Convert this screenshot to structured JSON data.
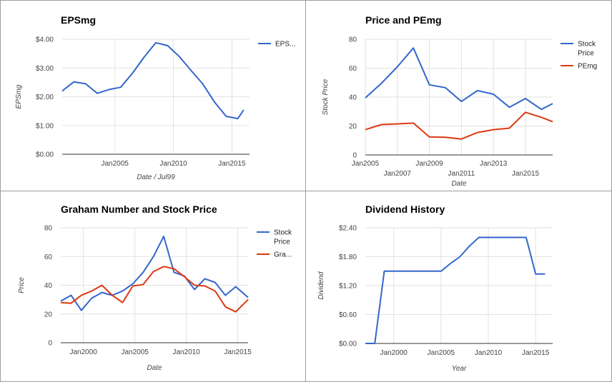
{
  "chart_data": [
    {
      "type": "line",
      "title": "EPSmg",
      "xlabel": "Date / Jul99",
      "ylabel": "EPSmg",
      "ylim": [
        0,
        4
      ],
      "yticks": [
        "$0.00",
        "$1.00",
        "$2.00",
        "$3.00",
        "$4.00"
      ],
      "xlim": [
        2000.5,
        2016.5
      ],
      "xticks": [
        "Jan2005",
        "Jan2010",
        "Jan2015"
      ],
      "xtick_values": [
        2005,
        2010,
        2015
      ],
      "grid": true,
      "legend": "right",
      "series": [
        {
          "name": "EPS...",
          "color": "#3366cc",
          "x": [
            2000.5,
            2001.5,
            2002.5,
            2003.5,
            2004.5,
            2005.5,
            2006.5,
            2007.5,
            2008.5,
            2009.5,
            2010.5,
            2011.5,
            2012.5,
            2013.5,
            2014.5,
            2015.5,
            2016.0
          ],
          "y": [
            2.2,
            2.52,
            2.45,
            2.12,
            2.25,
            2.33,
            2.82,
            3.38,
            3.88,
            3.78,
            3.4,
            2.92,
            2.45,
            1.82,
            1.32,
            1.24,
            1.54
          ]
        }
      ]
    },
    {
      "type": "line",
      "title": "Price and PEmg",
      "xlabel": "Date",
      "ylabel": "Stock Price",
      "ylim": [
        0,
        80
      ],
      "yticks": [
        "0",
        "20",
        "40",
        "60",
        "80"
      ],
      "xlim": [
        2005,
        2016.7
      ],
      "xticks": [
        "Jan2005",
        "Jan2007",
        "Jan2009",
        "Jan2011",
        "Jan2013",
        "Jan2015"
      ],
      "xtick_values": [
        2005,
        2007,
        2009,
        2011,
        2013,
        2015
      ],
      "grid": true,
      "legend": "right",
      "series": [
        {
          "name": "Stock Price",
          "color": "#3366cc",
          "x": [
            2005,
            2006,
            2007,
            2008,
            2009,
            2010,
            2011,
            2012,
            2013,
            2014,
            2015,
            2016,
            2016.7
          ],
          "y": [
            39.5,
            49.5,
            61,
            74,
            48.5,
            46.5,
            37,
            44.5,
            42,
            33,
            39,
            31.5,
            35.5
          ]
        },
        {
          "name": "PEmg",
          "color": "#dc3912",
          "x": [
            2005,
            2006,
            2007,
            2008,
            2009,
            2010,
            2011,
            2012,
            2013,
            2014,
            2015,
            2016,
            2016.7
          ],
          "y": [
            17.5,
            21,
            21.5,
            22,
            12.5,
            12.2,
            11,
            15.5,
            17.5,
            18.5,
            29.5,
            26,
            23
          ]
        }
      ]
    },
    {
      "type": "line",
      "title": "Graham Number and Stock Price",
      "xlabel": "Date",
      "ylabel": "Price",
      "ylim": [
        0,
        80
      ],
      "yticks": [
        "0",
        "20",
        "40",
        "60",
        "80"
      ],
      "xlim": [
        1997.8,
        2016.0
      ],
      "xticks": [
        "Jan2000",
        "Jan2005",
        "Jan2010",
        "Jan2015"
      ],
      "xtick_values": [
        2000,
        2005,
        2010,
        2015
      ],
      "grid": true,
      "legend": "right",
      "series": [
        {
          "name": "Stock Price",
          "color": "#3366cc",
          "x": [
            1997.8,
            1998.8,
            1999.8,
            2000.8,
            2001.8,
            2002.8,
            2003.8,
            2004.8,
            2005.8,
            2006.8,
            2007.8,
            2008.8,
            2009.8,
            2010.8,
            2011.8,
            2012.8,
            2013.8,
            2014.8,
            2016.0
          ],
          "y": [
            29,
            33,
            22.5,
            31,
            35,
            33,
            36,
            41,
            49,
            60,
            74,
            49,
            46.5,
            37,
            44.5,
            42,
            33,
            39,
            31.5
          ]
        },
        {
          "name": "Gra...",
          "color": "#dc3912",
          "x": [
            1997.8,
            1998.8,
            1999.8,
            2000.8,
            2001.8,
            2002.8,
            2003.8,
            2004.8,
            2005.8,
            2006.8,
            2007.8,
            2008.8,
            2009.8,
            2010.8,
            2011.8,
            2012.8,
            2013.8,
            2014.8,
            2016.0
          ],
          "y": [
            28,
            27.5,
            33,
            36,
            40,
            33,
            28,
            39.5,
            40.5,
            49.5,
            53,
            51.5,
            46,
            40,
            39.5,
            36,
            25,
            21.5,
            30
          ]
        }
      ]
    },
    {
      "type": "line",
      "title": "Dividend History",
      "xlabel": "Year",
      "ylabel": "Dividend",
      "ylim": [
        0,
        2.4
      ],
      "yticks": [
        "$0.00",
        "$0.60",
        "$1.20",
        "$1.80",
        "$2.40"
      ],
      "xlim": [
        1997,
        2016.8
      ],
      "xticks": [
        "Jan2000",
        "Jan2005",
        "Jan2010",
        "Jan2015"
      ],
      "xtick_values": [
        2000,
        2005,
        2010,
        2015
      ],
      "grid": true,
      "legend": "none",
      "series": [
        {
          "name": "",
          "color": "#3366cc",
          "x": [
            1997,
            1998,
            1999,
            2000,
            2001,
            2002,
            2003,
            2004,
            2005,
            2006,
            2007,
            2008,
            2009,
            2010,
            2011,
            2012,
            2013,
            2014,
            2015,
            2016
          ],
          "y": [
            0,
            0,
            1.5,
            1.5,
            1.5,
            1.5,
            1.5,
            1.5,
            1.5,
            1.66,
            1.8,
            2.02,
            2.2,
            2.2,
            2.2,
            2.2,
            2.2,
            2.2,
            1.44,
            1.44
          ]
        }
      ]
    }
  ]
}
